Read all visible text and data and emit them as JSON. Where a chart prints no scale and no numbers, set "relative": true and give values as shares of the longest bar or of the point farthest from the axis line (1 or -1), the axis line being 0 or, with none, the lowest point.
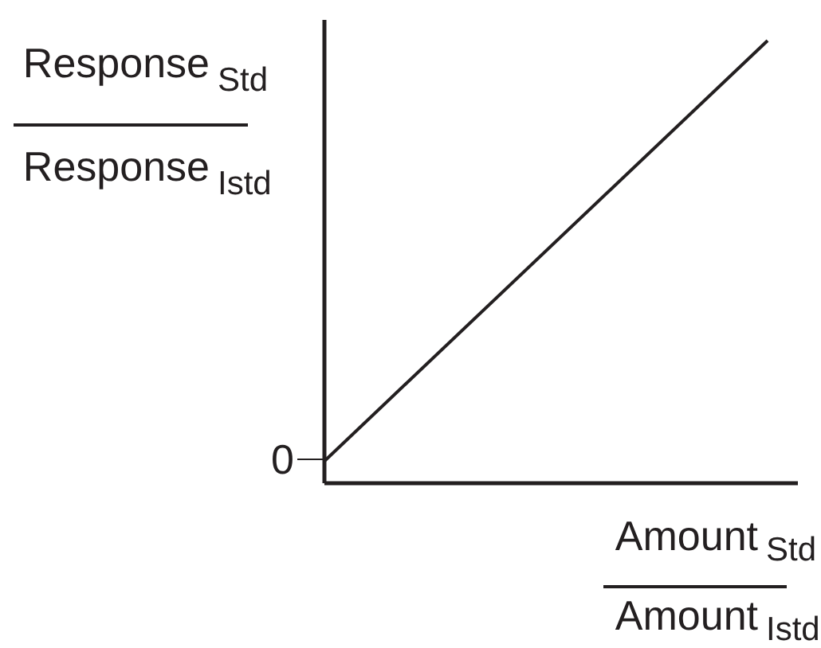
{
  "chart_data": {
    "type": "line",
    "ylabel": "Response $_{Std}$\nResponse $_{Istd}$",
    "xlabel": "Amount $_{Std}$\nAmount $_{Istd}$",
    "categories": [
      null,
      null
    ],
    "values": [
      0.05,
      1
    ],
    "relative": true,
    "color": "#231f20",
    "line_style": "solid",
    "annotations": [
      "0"
    ]
  }
}
